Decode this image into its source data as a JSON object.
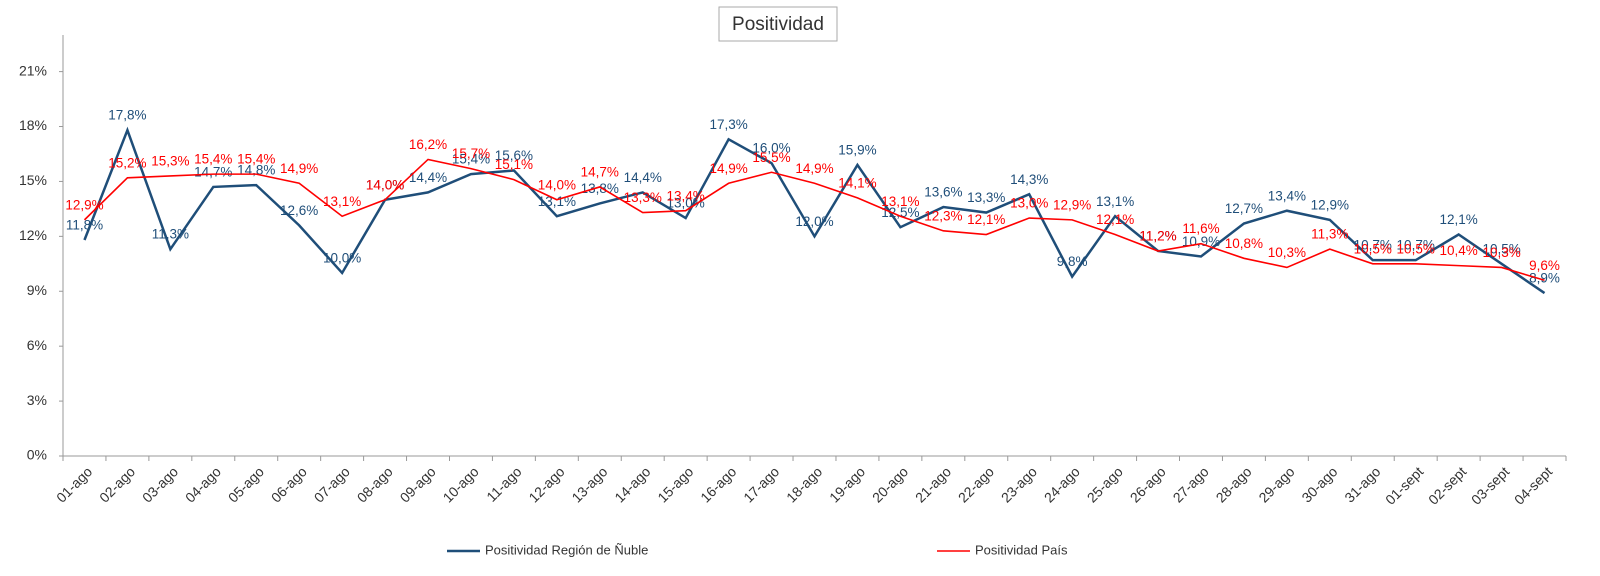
{
  "chart_data": {
    "type": "line",
    "title": "Positividad",
    "categories": [
      "01-ago",
      "02-ago",
      "03-ago",
      "04-ago",
      "05-ago",
      "06-ago",
      "07-ago",
      "08-ago",
      "09-ago",
      "10-ago",
      "11-ago",
      "12-ago",
      "13-ago",
      "14-ago",
      "15-ago",
      "16-ago",
      "17-ago",
      "18-ago",
      "19-ago",
      "20-ago",
      "21-ago",
      "22-ago",
      "23-ago",
      "24-ago",
      "25-ago",
      "26-ago",
      "27-ago",
      "28-ago",
      "29-ago",
      "30-ago",
      "31-ago",
      "01-sept",
      "02-sept",
      "03-sept",
      "04-sept"
    ],
    "series": [
      {
        "name": "Positividad Región de Ñuble",
        "color": "#1f4e79",
        "values": [
          11.8,
          17.8,
          11.3,
          14.7,
          14.8,
          12.6,
          10.0,
          14.0,
          14.4,
          15.4,
          15.6,
          13.1,
          13.8,
          14.4,
          13.0,
          17.3,
          16.0,
          12.0,
          15.9,
          12.5,
          13.6,
          13.3,
          14.3,
          9.8,
          13.1,
          11.2,
          10.9,
          12.7,
          13.4,
          12.9,
          10.7,
          10.7,
          12.1,
          10.5,
          8.9
        ],
        "value_labels": [
          "11,8%",
          "17,8%",
          "11,3%",
          "14,7%",
          "14,8%",
          "12,6%",
          "10,0%",
          "14,0%",
          "14,4%",
          "15,4%",
          "15,6%",
          "13,1%",
          "13,8%",
          "14,4%",
          "13,0%",
          "17,3%",
          "16,0%",
          "12,0%",
          "15,9%",
          "12,5%",
          "13,6%",
          "13,3%",
          "14,3%",
          "9,8%",
          "13,1%",
          "11,2%",
          "10,9%",
          "12,7%",
          "13,4%",
          "12,9%",
          "10,7%",
          "10,7%",
          "12,1%",
          "10,5%",
          "8,9%"
        ]
      },
      {
        "name": "Positividad País",
        "color": "#ff0000",
        "values": [
          12.9,
          15.2,
          15.3,
          15.4,
          15.4,
          14.9,
          13.1,
          14.0,
          16.2,
          15.7,
          15.1,
          14.0,
          14.7,
          13.3,
          13.4,
          14.9,
          15.5,
          14.9,
          14.1,
          13.1,
          12.3,
          12.1,
          13.0,
          12.9,
          12.1,
          11.2,
          11.6,
          10.8,
          10.3,
          11.3,
          10.5,
          10.5,
          10.4,
          10.3,
          9.6
        ],
        "value_labels": [
          "12,9%",
          "15,2%",
          "15,3%",
          "15,4%",
          "15,4%",
          "14,9%",
          "13,1%",
          "14,0%",
          "16,2%",
          "15,7%",
          "15,1%",
          "14,0%",
          "14,7%",
          "13,3%",
          "13,4%",
          "14,9%",
          "15,5%",
          "14,9%",
          "14,1%",
          "13,1%",
          "12,3%",
          "12,1%",
          "13,0%",
          "12,9%",
          "12,1%",
          "11,2%",
          "11,6%",
          "10,8%",
          "10,3%",
          "11,3%",
          "10,5%",
          "10,5%",
          "10,4%",
          "10,3%",
          "9,6%"
        ]
      }
    ],
    "ylim": [
      0,
      23
    ],
    "yticks": [
      {
        "value": 0,
        "label": "0%"
      },
      {
        "value": 3,
        "label": "3%"
      },
      {
        "value": 6,
        "label": "6%"
      },
      {
        "value": 9,
        "label": "9%"
      },
      {
        "value": 12,
        "label": "12%"
      },
      {
        "value": 15,
        "label": "15%"
      },
      {
        "value": 18,
        "label": "18%"
      },
      {
        "value": 21,
        "label": "21%"
      }
    ],
    "grid": false
  }
}
